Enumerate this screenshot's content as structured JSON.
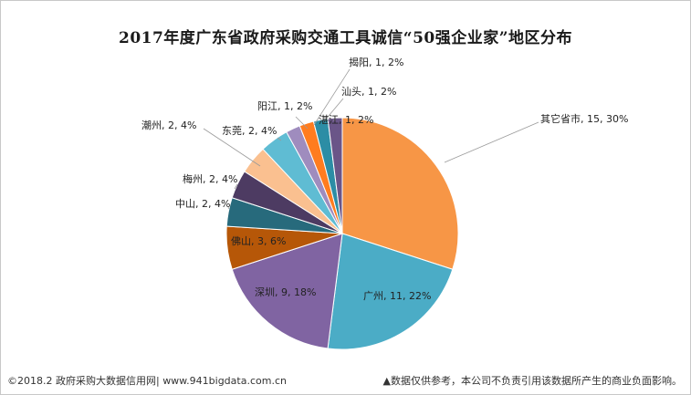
{
  "title": "2017年度广东省政府采购交通工具诚信“50强企业家”地区分布",
  "footer": {
    "left": "©2018.2 政府采购大数据信用网| www.941bigdata.com.cn",
    "right": "▲数据仅供参考，本公司不负责引用该数据所产生的商业负面影响。"
  },
  "chart_data": {
    "type": "pie",
    "title": "2017年度广东省政府采购交通工具诚信“50强企业家”地区分布",
    "legend": "none",
    "slices": [
      {
        "name": "其它省市",
        "value": 15,
        "percent": "30%",
        "label": "其它省市, 15, 30%",
        "color": "#F79646"
      },
      {
        "name": "广州",
        "value": 11,
        "percent": "22%",
        "label": "广州, 11, 22%",
        "color": "#4BACC6"
      },
      {
        "name": "深圳",
        "value": 9,
        "percent": "18%",
        "label": "深圳, 9, 18%",
        "color": "#8064A2"
      },
      {
        "name": "佛山",
        "value": 3,
        "percent": "6%",
        "label": "佛山, 3, 6%",
        "color": "#B65708"
      },
      {
        "name": "中山",
        "value": 2,
        "percent": "4%",
        "label": "中山, 2, 4%",
        "color": "#276A7C"
      },
      {
        "name": "梅州",
        "value": 2,
        "percent": "4%",
        "label": "梅州, 2, 4%",
        "color": "#4D3B62"
      },
      {
        "name": "潮州",
        "value": 2,
        "percent": "4%",
        "label": "潮州, 2, 4%",
        "color": "#FAC090"
      },
      {
        "name": "东莞",
        "value": 2,
        "percent": "4%",
        "label": "东莞, 2, 4%",
        "color": "#5FBCD3"
      },
      {
        "name": "阳江",
        "value": 1,
        "percent": "2%",
        "label": "阳江, 1, 2%",
        "color": "#9F8CBE"
      },
      {
        "name": "揭阳",
        "value": 1,
        "percent": "2%",
        "label": "揭阳, 1, 2%",
        "color": "#FF7C1F"
      },
      {
        "name": "汕头",
        "value": 1,
        "percent": "2%",
        "label": "汕头, 1, 2%",
        "color": "#2C8DA5"
      },
      {
        "name": "湛江",
        "value": 1,
        "percent": "2%",
        "label": "湛江, 1, 2%",
        "color": "#6A5588"
      }
    ]
  }
}
